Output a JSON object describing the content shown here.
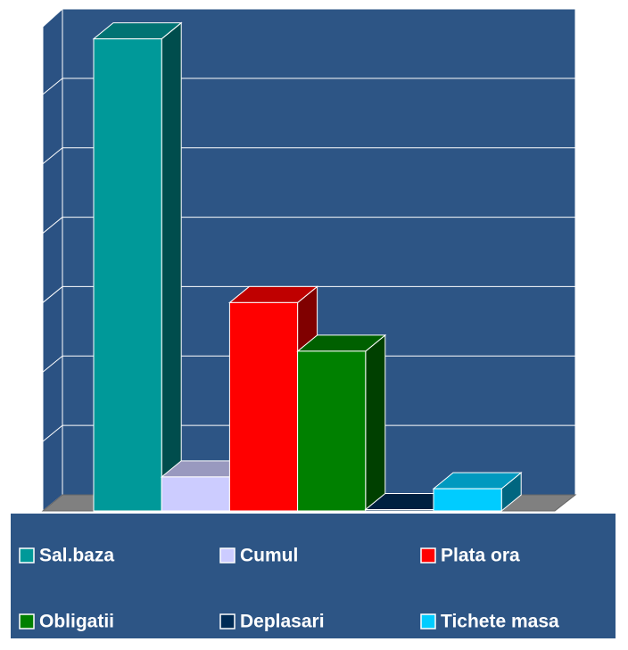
{
  "chart_data": {
    "type": "bar3d",
    "categories": [
      "Sal.baza",
      "Cumul",
      "Plata ora",
      "Obligatii",
      "Deplasari",
      "Tichete masa"
    ],
    "values": [
      6.8,
      0.49,
      3.0,
      2.3,
      0.02,
      0.32
    ],
    "colors": [
      "#009999",
      "#ccccff",
      "#ff0000",
      "#008000",
      "#002b55",
      "#00ccff"
    ],
    "ylim": [
      0,
      7
    ],
    "yticks": [
      0,
      1,
      2,
      3,
      4,
      5,
      6,
      7
    ],
    "grid": true
  }
}
